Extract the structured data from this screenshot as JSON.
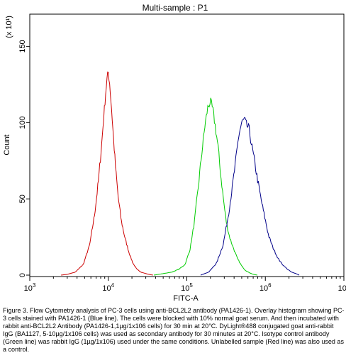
{
  "chart_data": {
    "type": "line",
    "title": "Multi-sample : P1",
    "xlabel": "FITC-A",
    "ylabel": "Count",
    "y_multiplier_label": "(x 10¹)",
    "x_scale": "log",
    "xlim": [
      1000,
      10000000
    ],
    "ylim": [
      0,
      160
    ],
    "x_ticks": [
      {
        "value": 1000,
        "base": "10",
        "exp": "3"
      },
      {
        "value": 10000,
        "base": "10",
        "exp": "4"
      },
      {
        "value": 100000,
        "base": "10",
        "exp": "5"
      },
      {
        "value": 1000000,
        "base": "10",
        "exp": "6"
      },
      {
        "value": 10000000,
        "base": "10",
        "exp": "7"
      }
    ],
    "y_ticks": [
      0,
      50,
      100,
      150
    ],
    "grid": false,
    "legend": "none",
    "series": [
      {
        "color": "#cc0000",
        "x": [
          2500,
          3000,
          3800,
          4800,
          5800,
          6700,
          7500,
          8200,
          8700,
          9200,
          9600,
          10000,
          10400,
          10900,
          11500,
          12300,
          13300,
          14600,
          16200,
          18300,
          20500,
          23000,
          26000,
          30000,
          33000,
          37000
        ],
        "y": [
          0,
          0.5,
          2,
          7,
          20,
          40,
          62,
          85,
          102,
          118,
          128,
          133,
          126,
          112,
          94,
          72,
          52,
          36,
          25,
          15,
          8,
          4,
          2,
          1,
          0.5,
          0
        ]
      },
      {
        "color": "#00cc00",
        "x": [
          38000,
          50000,
          65000,
          80000,
          95000,
          110000,
          125000,
          140000,
          155000,
          170000,
          185000,
          200000,
          215000,
          230000,
          250000,
          270000,
          295000,
          320000,
          350000,
          390000,
          440000,
          500000,
          560000,
          630000,
          700000,
          790000
        ],
        "y": [
          0,
          1,
          2,
          4,
          7,
          17,
          35,
          58,
          80,
          98,
          110,
          114,
          108,
          98,
          84,
          66,
          48,
          34,
          25,
          18,
          11,
          6,
          3,
          1.5,
          0.5,
          0
        ]
      },
      {
        "color": "#000088",
        "x": [
          150000,
          190000,
          240000,
          290000,
          340000,
          380000,
          420000,
          460000,
          500000,
          540000,
          580000,
          620000,
          670000,
          730000,
          800000,
          880000,
          980000,
          1100000,
          1250000,
          1450000,
          1650000,
          1900000,
          2150000,
          2450000,
          2700000
        ],
        "y": [
          0,
          2,
          8,
          20,
          40,
          58,
          75,
          92,
          100,
          102,
          98,
          96,
          85,
          74,
          62,
          50,
          38,
          26,
          18,
          11,
          7,
          4,
          2,
          1,
          0
        ]
      }
    ]
  },
  "caption": "Figure 3. Flow Cytometry analysis of PC-3 cells using anti-BCL2L2 antibody (PA1426-1). Overlay histogram showing PC-3 cells stained with PA1426-1 (Blue line). The cells were blocked with 10% normal goat serum. And then incubated with rabbit anti-BCL2L2 Antibody (PA1426-1,1µg/1x106 cells) for 30 min at 20°C. DyLight®488 conjugated goat anti-rabbit IgG (BA1127, 5-10µg/1x106 cells) was used as secondary antibody for 30 minutes at 20°C. Isotype control antibody (Green line) was rabbit IgG (1µg/1x106) used under the same conditions. Unlabelled sample (Red line) was also used as a control."
}
